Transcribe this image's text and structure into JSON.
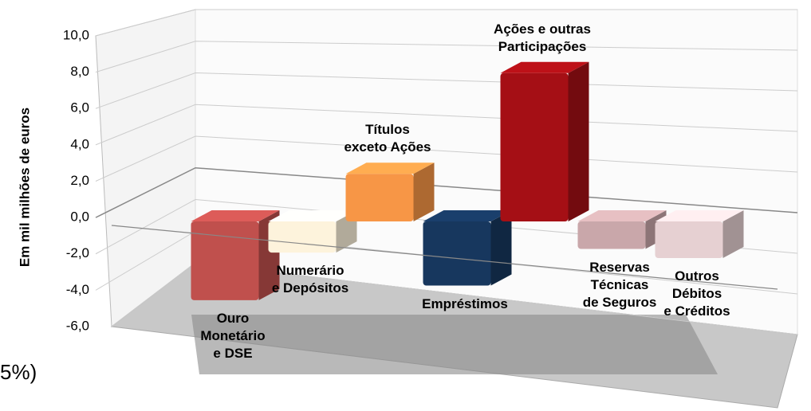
{
  "chart_data": {
    "type": "bar3d",
    "ylabel": "Em  mil milhões de euros",
    "categories": [
      "Ouro\nMonetário\ne DSE",
      "Numerário\ne Depósitos",
      "Títulos\nexceto Ações",
      "Empréstimos",
      "Ações e outras\nParticipações",
      "Reservas\nTécnicas\nde Seguros",
      "Outros\nDébitos\ne Créditos"
    ],
    "values": [
      -4.3,
      -1.7,
      2.6,
      -3.5,
      8.1,
      -1.5,
      -2.0
    ],
    "colors": [
      "#c0504d",
      "#fdf3dc",
      "#f79646",
      "#17375e",
      "#a50f15",
      "#c9a7aa",
      "#e6d0d2"
    ],
    "ylim": [
      -6,
      10
    ],
    "yticks": [
      {
        "value": -6,
        "label": "-6,0"
      },
      {
        "value": -4,
        "label": "-4,0"
      },
      {
        "value": -2,
        "label": "-2,0"
      },
      {
        "value": 0,
        "label": "0,0"
      },
      {
        "value": 2,
        "label": "2,0"
      },
      {
        "value": 4,
        "label": "4,0"
      },
      {
        "value": 6,
        "label": "6,0"
      },
      {
        "value": 8,
        "label": "8,0"
      },
      {
        "value": 10,
        "label": "10,0"
      }
    ],
    "grid": true,
    "note": "5%)"
  }
}
